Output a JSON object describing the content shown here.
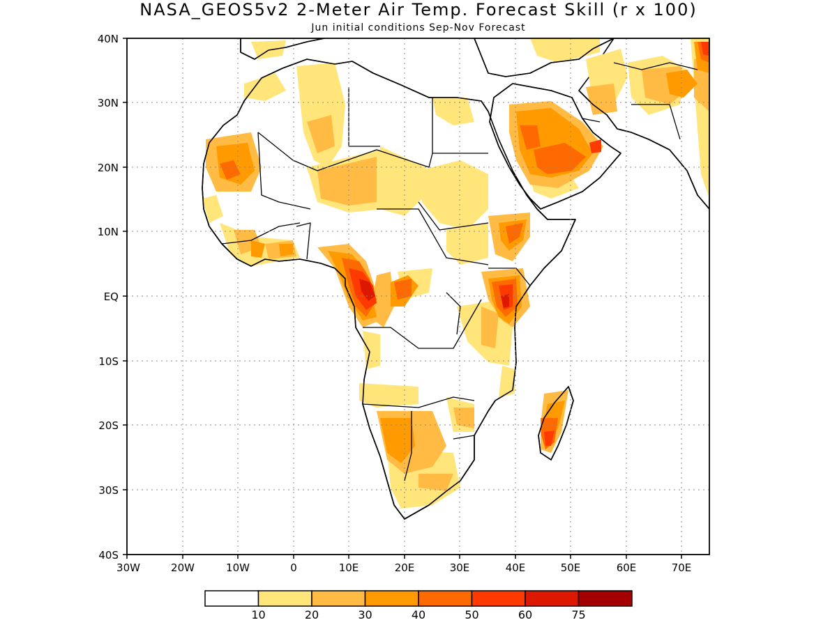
{
  "title": "NASA_GEOS5v2 2-Meter Air Temp. Forecast Skill (r x 100)",
  "subtitle": "Jun initial conditions  Sep-Nov Forecast",
  "map": {
    "lon_range": [
      -30,
      75
    ],
    "lat_range": [
      -40,
      40
    ],
    "gridlines": true,
    "lat_ticks": [
      "40N",
      "30N",
      "20N",
      "10N",
      "EQ",
      "10S",
      "20S",
      "30S",
      "40S"
    ],
    "lon_ticks": [
      "30W",
      "20W",
      "10W",
      "0",
      "10E",
      "20E",
      "30E",
      "40E",
      "50E",
      "60E",
      "70E"
    ]
  },
  "colorbar": {
    "colors": [
      "#ffffff",
      "#ffe57a",
      "#ffbb44",
      "#ff9a00",
      "#ff6a00",
      "#ff3a00",
      "#dd1800",
      "#a40000"
    ],
    "labels": [
      "10",
      "20",
      "30",
      "40",
      "50",
      "60",
      "75"
    ]
  }
}
